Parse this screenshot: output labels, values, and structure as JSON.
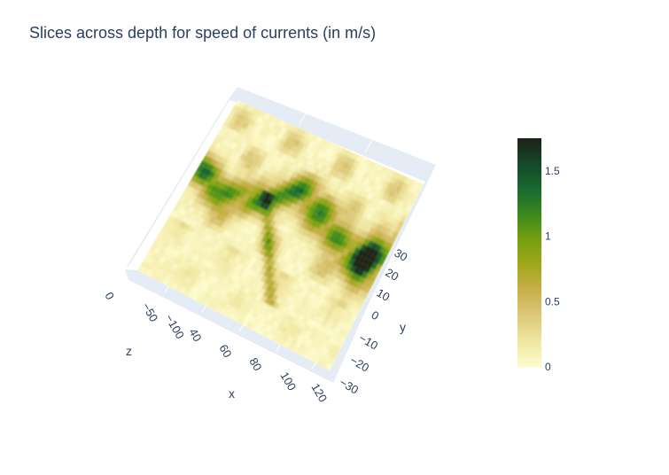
{
  "chart_data": {
    "type": "heatmap",
    "title": "Slices across depth for speed of currents (in m/s)",
    "scene": {
      "x": {
        "title": "x",
        "tick_labels": [
          "40",
          "60",
          "80",
          "100",
          "120"
        ]
      },
      "y": {
        "title": "y",
        "tick_labels": [
          "30",
          "20",
          "10",
          "0",
          "−10",
          "−20",
          "−30"
        ]
      },
      "z": {
        "title": "z",
        "tick_labels": [
          "0",
          "−50",
          "−100"
        ]
      }
    },
    "colorscale": [
      "#fefccf",
      "#f0e6a0",
      "#dcc97a",
      "#c9b04c",
      "#a2a81c",
      "#77a10e",
      "#3d8a1c",
      "#1a6b30",
      "#154a2a",
      "#1b2418"
    ],
    "colorbar": {
      "min": 0,
      "max": 1.75,
      "ticks": [
        0,
        0.5,
        1,
        1.5
      ],
      "tick_labels": [
        "0",
        "0.5",
        "1",
        "1.5"
      ]
    }
  }
}
